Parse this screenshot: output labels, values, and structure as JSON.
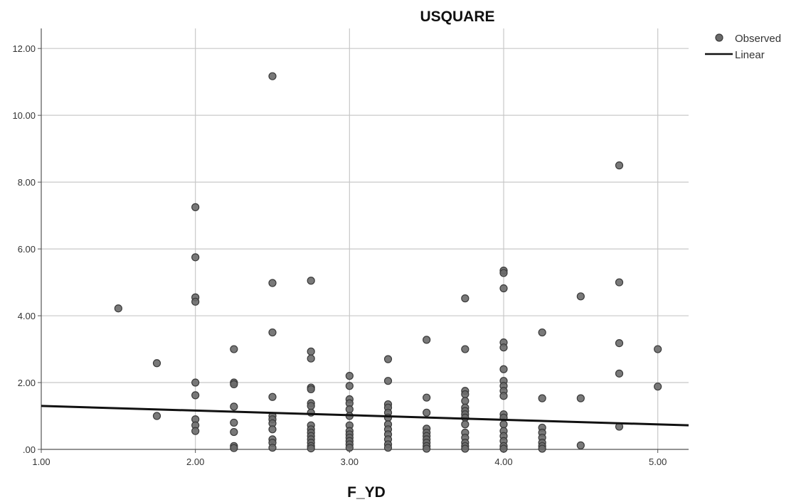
{
  "chart_data": {
    "type": "scatter",
    "title": "USQUARE",
    "xlabel": "F_YD",
    "ylabel": "",
    "xlim": [
      1.0,
      5.2
    ],
    "ylim": [
      0,
      12.6
    ],
    "x_ticks": [
      1.0,
      2.0,
      3.0,
      4.0,
      5.0
    ],
    "x_tick_labels": [
      "1.00",
      "2.00",
      "3.00",
      "4.00",
      "5.00"
    ],
    "y_ticks": [
      0,
      2,
      4,
      6,
      8,
      10,
      12
    ],
    "y_tick_labels": [
      ".00",
      "2.00",
      "4.00",
      "6.00",
      "8.00",
      "10.00",
      "12.00"
    ],
    "grid": true,
    "legend_position": "top-right",
    "legend": [
      {
        "label": "Observed",
        "kind": "marker"
      },
      {
        "label": "Linear",
        "kind": "line"
      }
    ],
    "colors": {
      "marker_fill": "#6a6a6a",
      "marker_stroke": "#3a3a3a",
      "line": "#111111",
      "grid": "#c8c8c8"
    },
    "observed": {
      "name": "Observed",
      "points": [
        [
          1.5,
          4.22
        ],
        [
          1.75,
          2.58
        ],
        [
          1.75,
          1.0
        ],
        [
          2.0,
          7.25
        ],
        [
          2.0,
          5.75
        ],
        [
          2.0,
          4.55
        ],
        [
          2.0,
          4.42
        ],
        [
          2.0,
          2.0
        ],
        [
          2.0,
          1.62
        ],
        [
          2.0,
          0.9
        ],
        [
          2.0,
          0.72
        ],
        [
          2.0,
          0.55
        ],
        [
          2.25,
          3.0
        ],
        [
          2.25,
          2.0
        ],
        [
          2.25,
          1.95
        ],
        [
          2.25,
          1.28
        ],
        [
          2.25,
          0.8
        ],
        [
          2.25,
          0.52
        ],
        [
          2.25,
          0.1
        ],
        [
          2.25,
          0.04
        ],
        [
          2.5,
          11.17
        ],
        [
          2.5,
          4.98
        ],
        [
          2.5,
          3.5
        ],
        [
          2.5,
          1.57
        ],
        [
          2.5,
          1.0
        ],
        [
          2.5,
          0.9
        ],
        [
          2.5,
          0.78
        ],
        [
          2.5,
          0.6
        ],
        [
          2.5,
          0.3
        ],
        [
          2.5,
          0.2
        ],
        [
          2.5,
          0.05
        ],
        [
          2.75,
          5.05
        ],
        [
          2.75,
          2.93
        ],
        [
          2.75,
          2.72
        ],
        [
          2.75,
          1.85
        ],
        [
          2.75,
          1.8
        ],
        [
          2.75,
          1.38
        ],
        [
          2.75,
          1.3
        ],
        [
          2.75,
          1.1
        ],
        [
          2.75,
          0.72
        ],
        [
          2.75,
          0.6
        ],
        [
          2.75,
          0.5
        ],
        [
          2.75,
          0.4
        ],
        [
          2.75,
          0.3
        ],
        [
          2.75,
          0.2
        ],
        [
          2.75,
          0.1
        ],
        [
          2.75,
          0.03
        ],
        [
          3.0,
          2.2
        ],
        [
          3.0,
          1.9
        ],
        [
          3.0,
          1.5
        ],
        [
          3.0,
          1.38
        ],
        [
          3.0,
          1.2
        ],
        [
          3.0,
          1.0
        ],
        [
          3.0,
          0.72
        ],
        [
          3.0,
          0.55
        ],
        [
          3.0,
          0.45
        ],
        [
          3.0,
          0.35
        ],
        [
          3.0,
          0.25
        ],
        [
          3.0,
          0.15
        ],
        [
          3.0,
          0.05
        ],
        [
          3.25,
          2.7
        ],
        [
          3.25,
          2.05
        ],
        [
          3.25,
          1.35
        ],
        [
          3.25,
          1.25
        ],
        [
          3.25,
          1.1
        ],
        [
          3.25,
          0.95
        ],
        [
          3.25,
          0.75
        ],
        [
          3.25,
          0.6
        ],
        [
          3.25,
          0.45
        ],
        [
          3.25,
          0.3
        ],
        [
          3.25,
          0.15
        ],
        [
          3.25,
          0.05
        ],
        [
          3.5,
          3.28
        ],
        [
          3.5,
          1.55
        ],
        [
          3.5,
          1.1
        ],
        [
          3.5,
          0.62
        ],
        [
          3.5,
          0.5
        ],
        [
          3.5,
          0.4
        ],
        [
          3.5,
          0.3
        ],
        [
          3.5,
          0.2
        ],
        [
          3.5,
          0.1
        ],
        [
          3.5,
          0.02
        ],
        [
          3.75,
          4.52
        ],
        [
          3.75,
          3.0
        ],
        [
          3.75,
          1.75
        ],
        [
          3.75,
          1.65
        ],
        [
          3.75,
          1.45
        ],
        [
          3.75,
          1.25
        ],
        [
          3.75,
          1.15
        ],
        [
          3.75,
          1.05
        ],
        [
          3.75,
          0.95
        ],
        [
          3.75,
          0.75
        ],
        [
          3.75,
          0.5
        ],
        [
          3.75,
          0.35
        ],
        [
          3.75,
          0.2
        ],
        [
          3.75,
          0.1
        ],
        [
          3.75,
          0.02
        ],
        [
          4.0,
          5.35
        ],
        [
          4.0,
          5.28
        ],
        [
          4.0,
          4.82
        ],
        [
          4.0,
          3.2
        ],
        [
          4.0,
          3.05
        ],
        [
          4.0,
          2.4
        ],
        [
          4.0,
          2.05
        ],
        [
          4.0,
          1.9
        ],
        [
          4.0,
          1.75
        ],
        [
          4.0,
          1.6
        ],
        [
          4.0,
          1.05
        ],
        [
          4.0,
          0.95
        ],
        [
          4.0,
          0.75
        ],
        [
          4.0,
          0.55
        ],
        [
          4.0,
          0.4
        ],
        [
          4.0,
          0.25
        ],
        [
          4.0,
          0.1
        ],
        [
          4.0,
          0.02
        ],
        [
          4.25,
          3.5
        ],
        [
          4.25,
          1.53
        ],
        [
          4.25,
          0.65
        ],
        [
          4.25,
          0.5
        ],
        [
          4.25,
          0.35
        ],
        [
          4.25,
          0.2
        ],
        [
          4.25,
          0.1
        ],
        [
          4.25,
          0.02
        ],
        [
          4.5,
          4.58
        ],
        [
          4.5,
          1.53
        ],
        [
          4.5,
          0.12
        ],
        [
          4.75,
          8.5
        ],
        [
          4.75,
          5.0
        ],
        [
          4.75,
          3.18
        ],
        [
          4.75,
          2.27
        ],
        [
          4.75,
          0.68
        ],
        [
          5.0,
          3.0
        ],
        [
          5.0,
          1.88
        ]
      ]
    },
    "linear_fit": {
      "name": "Linear",
      "x": [
        1.0,
        5.2
      ],
      "y": [
        1.3,
        0.72
      ]
    }
  }
}
